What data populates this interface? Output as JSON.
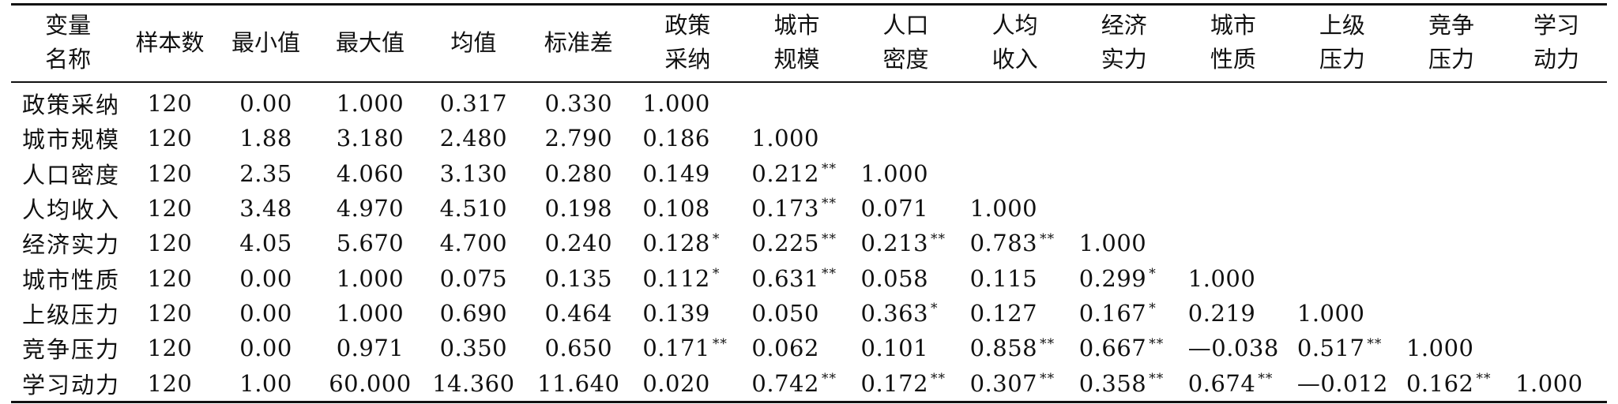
{
  "headers": [
    {
      "line1": "变量",
      "line2": "名称"
    },
    {
      "line1": "样本数",
      "line2": ""
    },
    {
      "line1": "最小值",
      "line2": ""
    },
    {
      "line1": "最大值",
      "line2": ""
    },
    {
      "line1": "均值",
      "line2": ""
    },
    {
      "line1": "标准差",
      "line2": ""
    },
    {
      "line1": "政策",
      "line2": "采纳"
    },
    {
      "line1": "城市",
      "line2": "规模"
    },
    {
      "line1": "人口",
      "line2": "密度"
    },
    {
      "line1": "人均",
      "line2": "收入"
    },
    {
      "line1": "经济",
      "line2": "实力"
    },
    {
      "line1": "城市",
      "line2": "性质"
    },
    {
      "line1": "上级",
      "line2": "压力"
    },
    {
      "line1": "竞争",
      "line2": "压力"
    },
    {
      "line1": "学习",
      "line2": "动力"
    }
  ],
  "rows": [
    {
      "name": "政策采纳",
      "n": "120",
      "min": "0.00",
      "max": "1.000",
      "mean": "0.317",
      "sd": "0.330",
      "corr": [
        {
          "v": "1.000",
          "s": ""
        }
      ]
    },
    {
      "name": "城市规模",
      "n": "120",
      "min": "1.88",
      "max": "3.180",
      "mean": "2.480",
      "sd": "2.790",
      "corr": [
        {
          "v": "0.186",
          "s": ""
        },
        {
          "v": "1.000",
          "s": ""
        }
      ]
    },
    {
      "name": "人口密度",
      "n": "120",
      "min": "2.35",
      "max": "4.060",
      "mean": "3.130",
      "sd": "0.280",
      "corr": [
        {
          "v": "0.149",
          "s": ""
        },
        {
          "v": "0.212",
          "s": "**"
        },
        {
          "v": "1.000",
          "s": ""
        }
      ]
    },
    {
      "name": "人均收入",
      "n": "120",
      "min": "3.48",
      "max": "4.970",
      "mean": "4.510",
      "sd": "0.198",
      "corr": [
        {
          "v": "0.108",
          "s": ""
        },
        {
          "v": "0.173",
          "s": "**"
        },
        {
          "v": "0.071",
          "s": ""
        },
        {
          "v": "1.000",
          "s": ""
        }
      ]
    },
    {
      "name": "经济实力",
      "n": "120",
      "min": "4.05",
      "max": "5.670",
      "mean": "4.700",
      "sd": "0.240",
      "corr": [
        {
          "v": "0.128",
          "s": "*"
        },
        {
          "v": "0.225",
          "s": "**"
        },
        {
          "v": "0.213",
          "s": "**"
        },
        {
          "v": "0.783",
          "s": "**"
        },
        {
          "v": "1.000",
          "s": ""
        }
      ]
    },
    {
      "name": "城市性质",
      "n": "120",
      "min": "0.00",
      "max": "1.000",
      "mean": "0.075",
      "sd": "0.135",
      "corr": [
        {
          "v": "0.112",
          "s": "*"
        },
        {
          "v": "0.631",
          "s": "**"
        },
        {
          "v": "0.058",
          "s": ""
        },
        {
          "v": "0.115",
          "s": ""
        },
        {
          "v": "0.299",
          "s": "*"
        },
        {
          "v": "1.000",
          "s": ""
        }
      ]
    },
    {
      "name": "上级压力",
      "n": "120",
      "min": "0.00",
      "max": "1.000",
      "mean": "0.690",
      "sd": "0.464",
      "corr": [
        {
          "v": "0.139",
          "s": ""
        },
        {
          "v": "0.050",
          "s": ""
        },
        {
          "v": "0.363",
          "s": "*"
        },
        {
          "v": "0.127",
          "s": ""
        },
        {
          "v": "0.167",
          "s": "*"
        },
        {
          "v": "0.219",
          "s": ""
        },
        {
          "v": "1.000",
          "s": ""
        }
      ]
    },
    {
      "name": "竞争压力",
      "n": "120",
      "min": "0.00",
      "max": "0.971",
      "mean": "0.350",
      "sd": "0.650",
      "corr": [
        {
          "v": "0.171",
          "s": "**"
        },
        {
          "v": "0.062",
          "s": ""
        },
        {
          "v": "0.101",
          "s": ""
        },
        {
          "v": "0.858",
          "s": "**"
        },
        {
          "v": "0.667",
          "s": "**"
        },
        {
          "v": "—0.038",
          "s": ""
        },
        {
          "v": "0.517",
          "s": "**"
        },
        {
          "v": "1.000",
          "s": ""
        }
      ]
    },
    {
      "name": "学习动力",
      "n": "120",
      "min": "1.00",
      "max": "60.000",
      "mean": "14.360",
      "sd": "11.640",
      "corr": [
        {
          "v": "0.020",
          "s": ""
        },
        {
          "v": "0.742",
          "s": "**"
        },
        {
          "v": "0.172",
          "s": "**"
        },
        {
          "v": "0.307",
          "s": "**"
        },
        {
          "v": "0.358",
          "s": "**"
        },
        {
          "v": "0.674",
          "s": "**"
        },
        {
          "v": "—0.012",
          "s": ""
        },
        {
          "v": "0.162",
          "s": "**"
        },
        {
          "v": "1.000",
          "s": ""
        }
      ]
    }
  ]
}
